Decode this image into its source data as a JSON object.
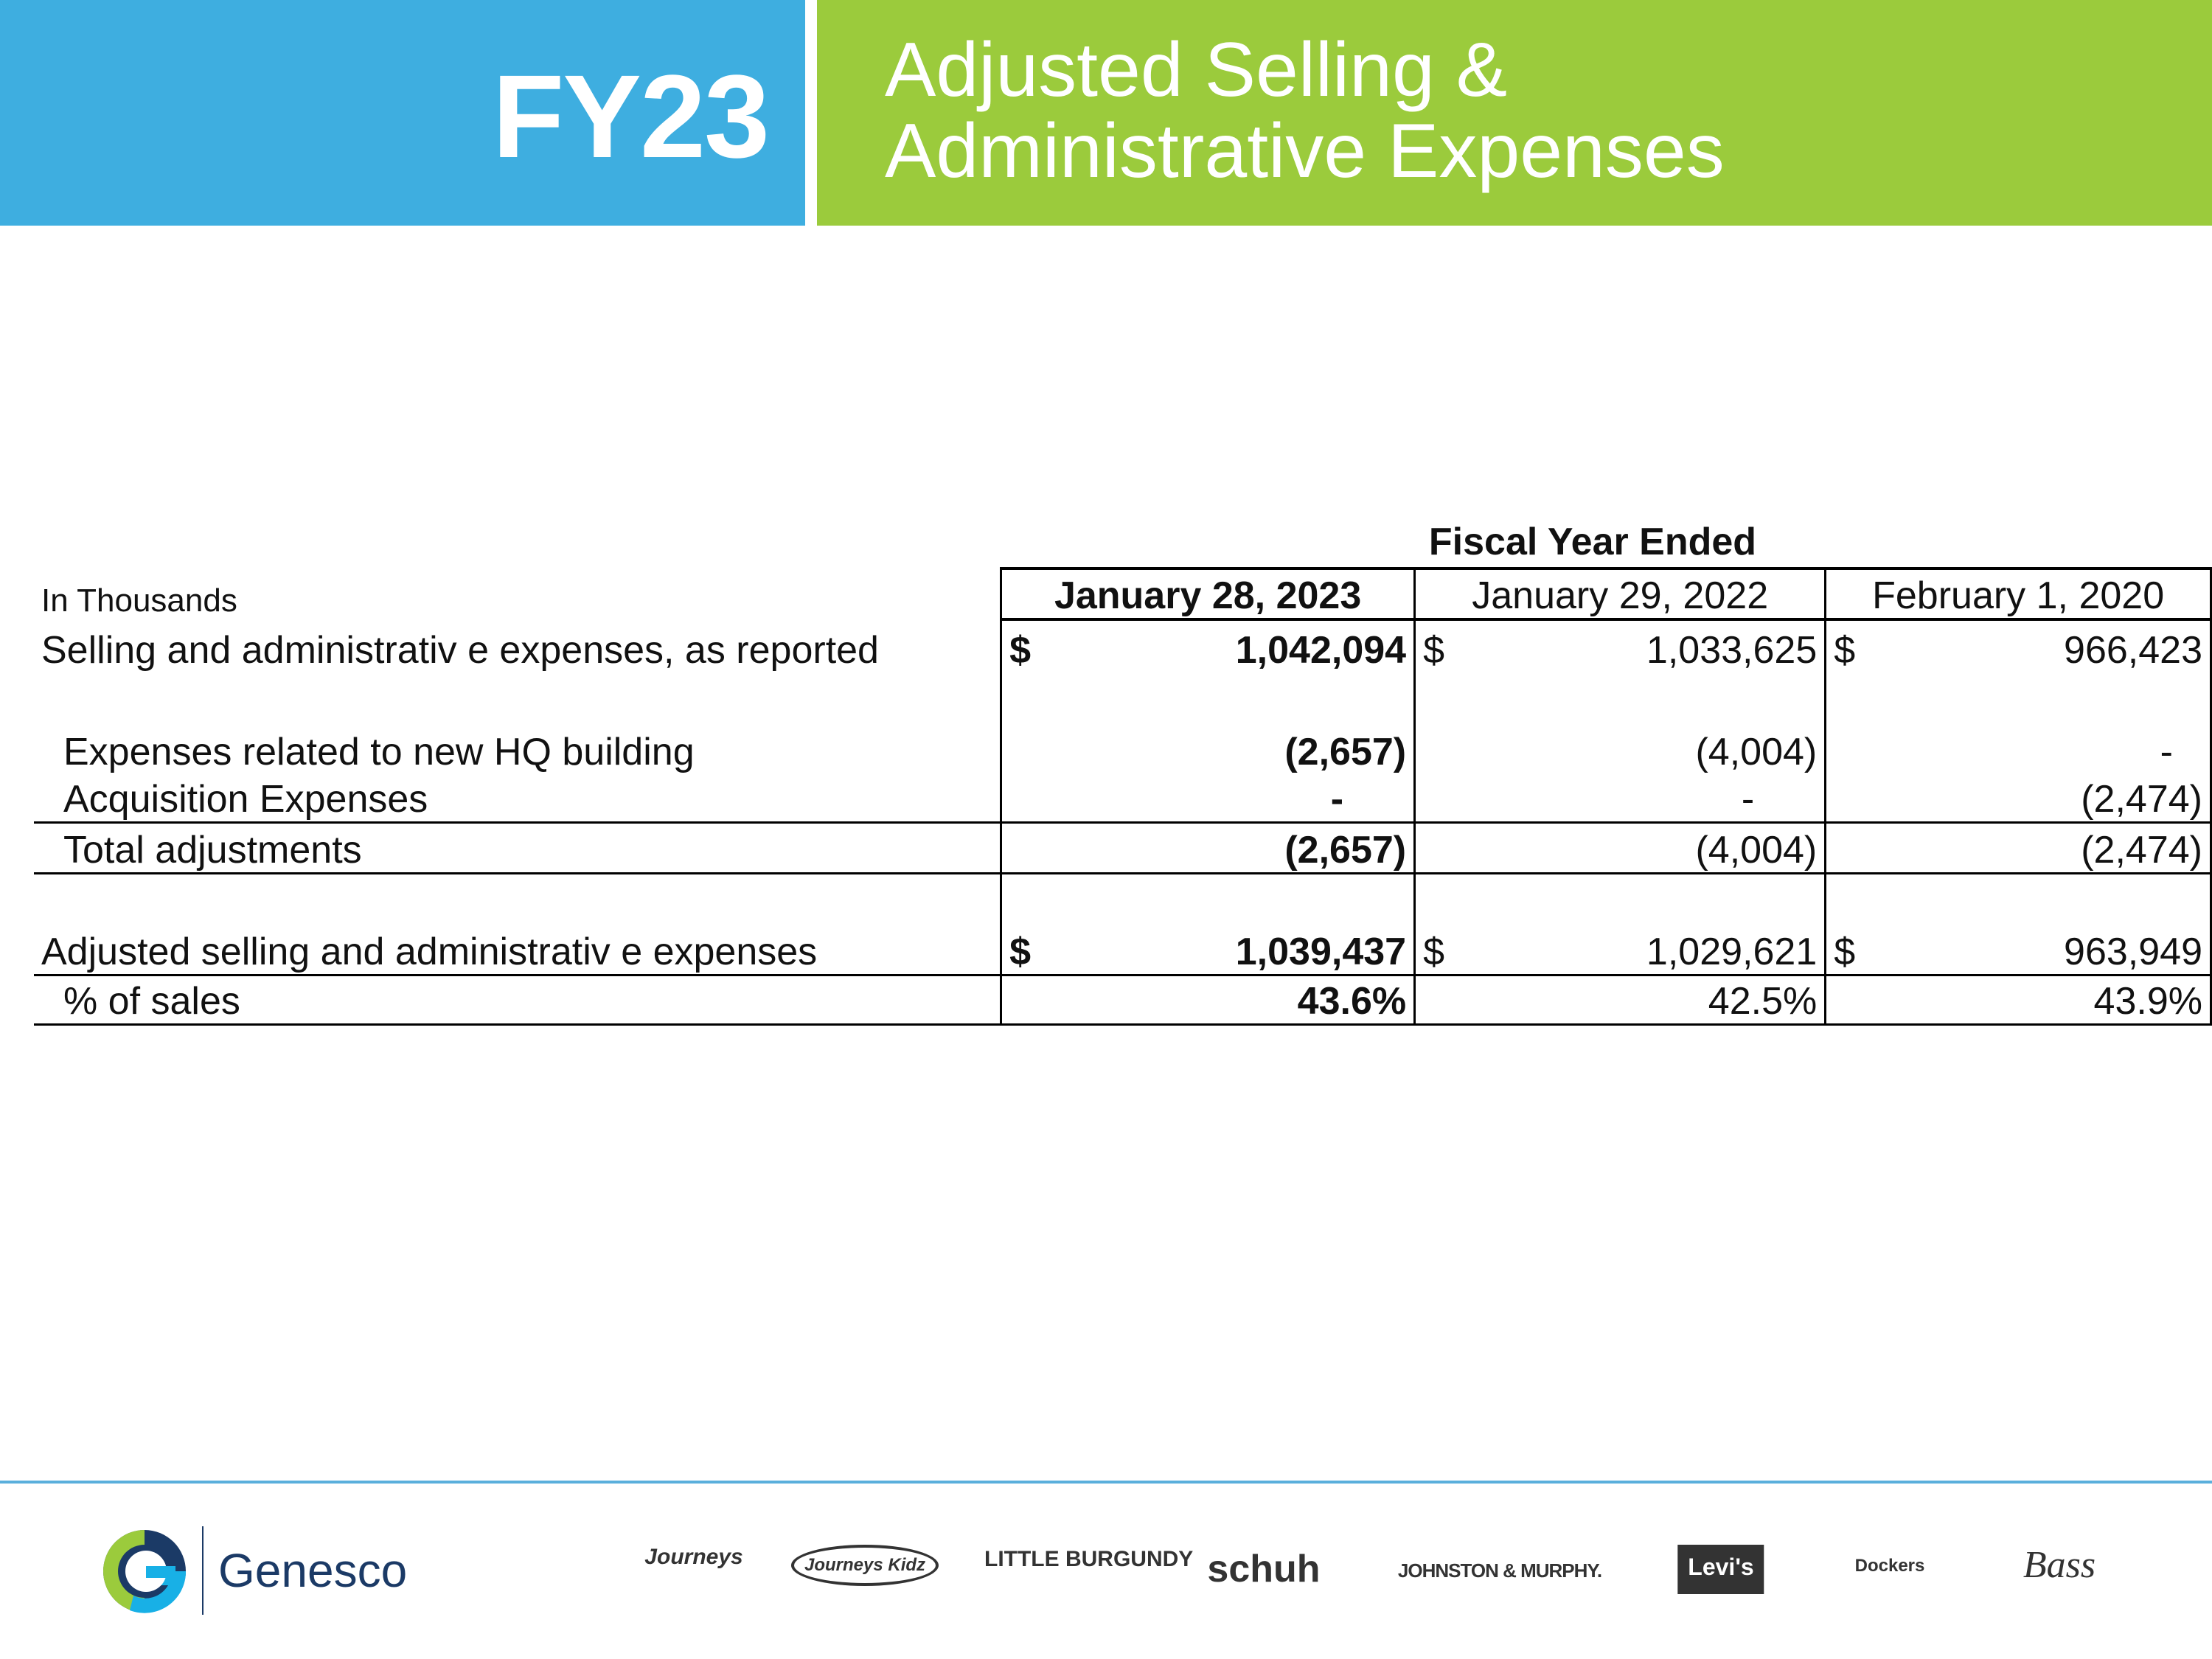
{
  "header": {
    "badge": "FY23",
    "title_line1": "Adjusted Selling &",
    "title_line2": "Administrative Expenses",
    "colors": {
      "badge_bg": "#3eaee0",
      "title_bg": "#9bcb3c"
    }
  },
  "table": {
    "super_header": "Fiscal Year Ended",
    "unit_label": "In Thousands",
    "columns": [
      "January 28, 2023",
      "January 29, 2022",
      "February 1, 2020"
    ],
    "rows": [
      {
        "label": "Selling and administrativ e expenses, as reported",
        "currency": "$",
        "values": [
          "1,042,094",
          "1,033,625",
          "966,423"
        ]
      },
      {
        "label": "Expenses related to new HQ building",
        "values": [
          "(2,657)",
          "(4,004)",
          "-"
        ]
      },
      {
        "label": "Acquisition Expenses",
        "values": [
          "-",
          "-",
          "(2,474)"
        ]
      },
      {
        "label": "Total adjustments",
        "values": [
          "(2,657)",
          "(4,004)",
          "(2,474)"
        ]
      },
      {
        "label": "Adjusted selling and administrativ e expenses",
        "currency": "$",
        "values": [
          "1,039,437",
          "1,029,621",
          "963,949"
        ]
      },
      {
        "label": "% of sales",
        "values": [
          "43.6%",
          "42.5%",
          "43.9%"
        ]
      }
    ]
  },
  "footer": {
    "company": "Genesco",
    "brands": [
      "Journeys",
      "Journeys Kidz",
      "LITTLE BURGUNDY",
      "schuh",
      "JOHNSTON & MURPHY.",
      "Levi's",
      "Dockers",
      "Bass"
    ],
    "line_color": "#5aafdc"
  }
}
